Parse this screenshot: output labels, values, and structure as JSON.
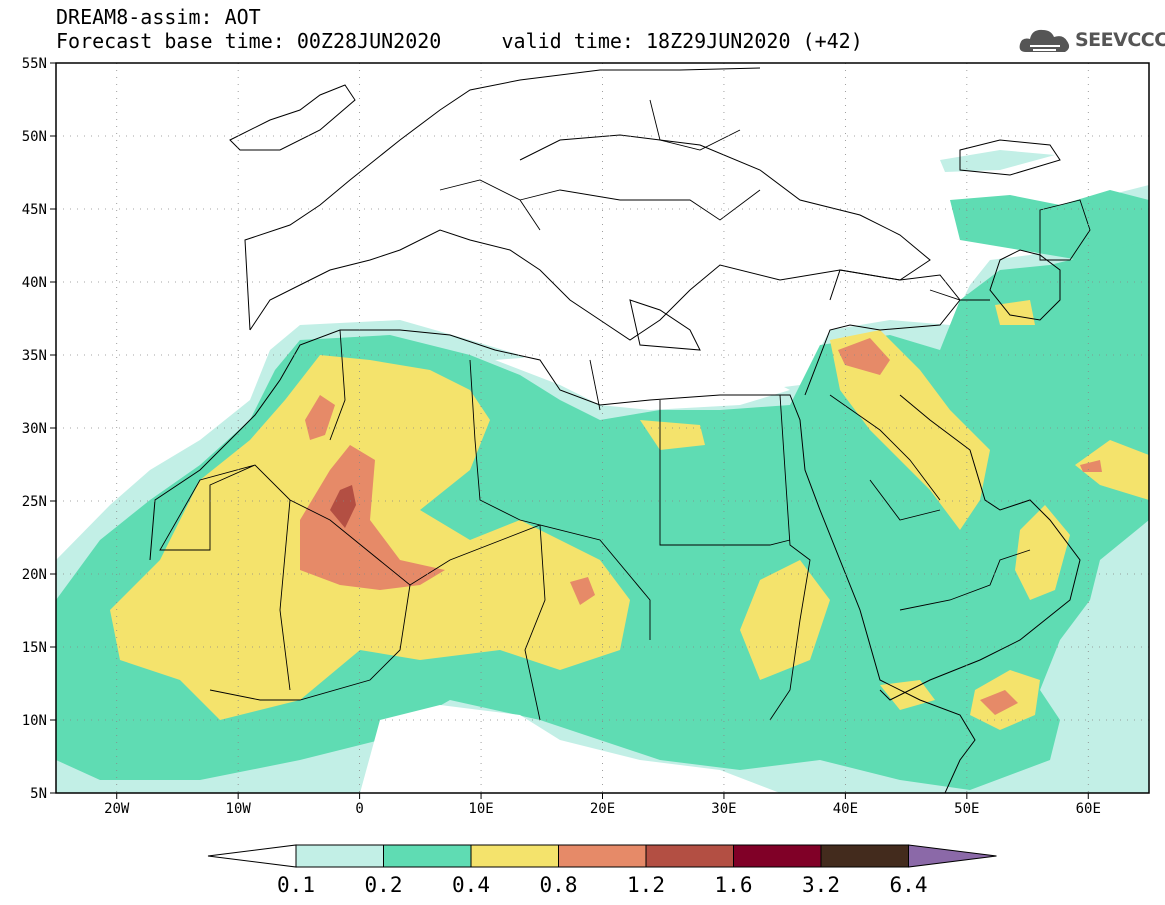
{
  "header": {
    "title": "DREAM8-assim: AOT",
    "subtitle": "Forecast base time: 00Z28JUN2020     valid time: 18Z29JUN2020 (+42)"
  },
  "logo": {
    "text": "SEEVCCC",
    "icon": "cloud-icon"
  },
  "map": {
    "lon_range": [
      -25,
      65
    ],
    "lat_range": [
      5,
      55
    ],
    "lat_ticks": [
      "5N",
      "10N",
      "15N",
      "20N",
      "25N",
      "30N",
      "35N",
      "40N",
      "45N",
      "50N",
      "55N"
    ],
    "lon_ticks": [
      "20W",
      "10W",
      "0",
      "10E",
      "20E",
      "30E",
      "40E",
      "50E",
      "60E"
    ],
    "grid": true,
    "variable": "AOT"
  },
  "colorbar": {
    "labels": [
      "0.1",
      "0.2",
      "0.4",
      "0.8",
      "1.2",
      "1.6",
      "3.2",
      "6.4"
    ],
    "colors": [
      "#ffffff",
      "#c2efe6",
      "#5fdcb3",
      "#f4e36c",
      "#e68a68",
      "#b34f43",
      "#800027",
      "#432b1d",
      "#8b69a8"
    ]
  }
}
